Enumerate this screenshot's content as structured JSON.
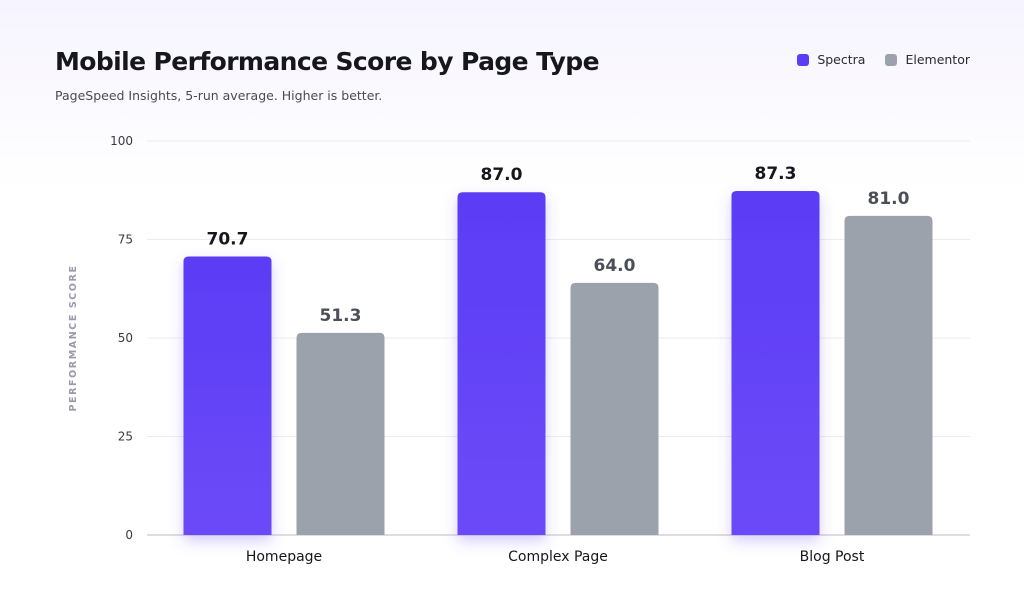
{
  "title": "Mobile Performance Score by Page Type",
  "subtitle": "PageSpeed Insights, 5-run average. Higher is better.",
  "colors": {
    "spectra": "#5b3df5",
    "elementor": "#9ba2ab",
    "spectra_label": "#16161d",
    "elementor_label": "#4b4f58"
  },
  "chart_data": {
    "type": "bar",
    "title": "Mobile Performance Score by Page Type",
    "subtitle": "PageSpeed Insights, 5-run average. Higher is better.",
    "xlabel": "",
    "ylabel": "PERFORMANCE SCORE",
    "categories": [
      "Homepage",
      "Complex Page",
      "Blog Post"
    ],
    "series": [
      {
        "name": "Spectra",
        "values": [
          70.7,
          87.0,
          87.3
        ],
        "labels": [
          "70.7",
          "87.0",
          "87.3"
        ]
      },
      {
        "name": "Elementor",
        "values": [
          51.3,
          64.0,
          81.0
        ],
        "labels": [
          "51.3",
          "64.0",
          "81.0"
        ]
      }
    ],
    "ylim": [
      0,
      100
    ],
    "yticks": [
      0,
      25,
      50,
      75,
      100
    ],
    "ytick_labels": [
      "0",
      "25",
      "50",
      "75",
      "100"
    ],
    "grid": true,
    "legend": "top-right"
  }
}
